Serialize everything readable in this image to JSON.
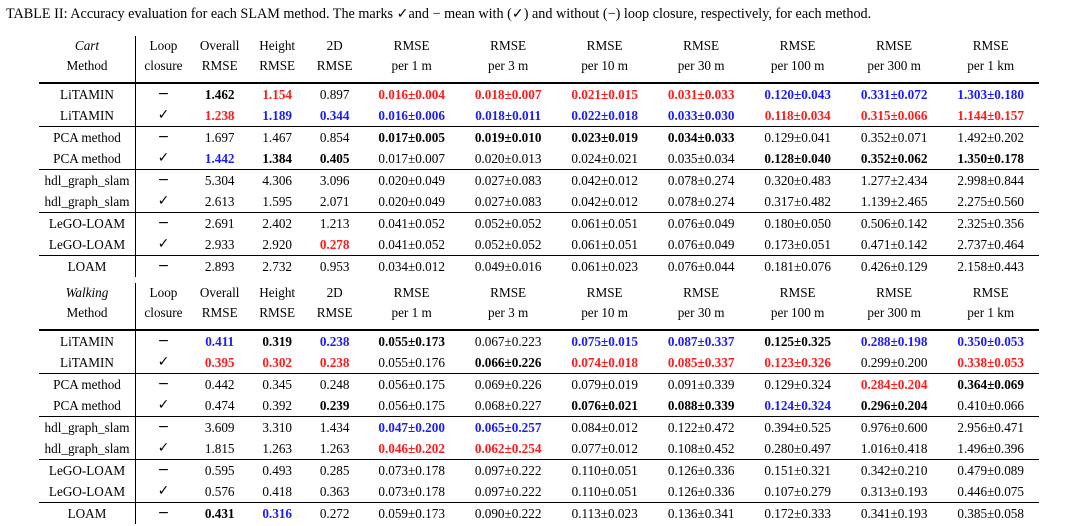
{
  "caption": "TABLE II: Accuracy evaluation for each SLAM method. The marks ✓and − mean with (✓) and without (−) loop closure, respectively, for each method.",
  "colors": {
    "red": "#ff1a1a",
    "blue": "#1a1aff"
  },
  "columns": [
    "",
    "Loop",
    "Overall",
    "Height",
    "2D",
    "RMSE",
    "RMSE",
    "RMSE",
    "RMSE",
    "RMSE",
    "RMSE",
    "RMSE"
  ],
  "columns2": [
    "Method",
    "closure",
    "RMSE",
    "RMSE",
    "RMSE",
    "per 1 m",
    "per 3 m",
    "per 10 m",
    "per 30 m",
    "per 100 m",
    "per 300 m",
    "per 1 km"
  ],
  "sections": [
    {
      "name": "Cart",
      "groups": [
        [
          {
            "cells": [
              "LiTAMIN",
              "−",
              "1.462",
              "1.154",
              "0.897",
              "0.016±0.004",
              "0.018±0.007",
              "0.021±0.015",
              "0.031±0.033",
              "0.120±0.043",
              "0.331±0.072",
              "1.303±0.180"
            ],
            "styles": [
              "",
              "",
              "b",
              "red",
              "",
              "red",
              "red",
              "red",
              "red",
              "blue",
              "blue",
              "blue"
            ]
          },
          {
            "cells": [
              "LiTAMIN",
              "✓",
              "1.238",
              "1.189",
              "0.344",
              "0.016±0.006",
              "0.018±0.011",
              "0.022±0.018",
              "0.033±0.030",
              "0.118±0.034",
              "0.315±0.066",
              "1.144±0.157"
            ],
            "styles": [
              "",
              "",
              "red",
              "blue",
              "blue",
              "blue",
              "blue",
              "blue",
              "blue",
              "red",
              "red",
              "red"
            ]
          }
        ],
        [
          {
            "cells": [
              "PCA method",
              "−",
              "1.697",
              "1.467",
              "0.854",
              "0.017±0.005",
              "0.019±0.010",
              "0.023±0.019",
              "0.034±0.033",
              "0.129±0.041",
              "0.352±0.071",
              "1.492±0.202"
            ],
            "styles": [
              "",
              "",
              "",
              "",
              "",
              "b",
              "b",
              "b",
              "b",
              "",
              "",
              ""
            ]
          },
          {
            "cells": [
              "PCA method",
              "✓",
              "1.442",
              "1.384",
              "0.405",
              "0.017±0.007",
              "0.020±0.013",
              "0.024±0.021",
              "0.035±0.034",
              "0.128±0.040",
              "0.352±0.062",
              "1.350±0.178"
            ],
            "styles": [
              "",
              "",
              "blue",
              "b",
              "b",
              "",
              "",
              "",
              "",
              "b",
              "b",
              "b"
            ]
          }
        ],
        [
          {
            "cells": [
              "hdl_graph_slam",
              "−",
              "5.304",
              "4.306",
              "3.096",
              "0.020±0.049",
              "0.027±0.083",
              "0.042±0.012",
              "0.078±0.274",
              "0.320±0.483",
              "1.277±2.434",
              "2.998±0.844"
            ],
            "styles": [
              "",
              "",
              "",
              "",
              "",
              "",
              "",
              "",
              "",
              "",
              "",
              ""
            ]
          },
          {
            "cells": [
              "hdl_graph_slam",
              "✓",
              "2.613",
              "1.595",
              "2.071",
              "0.020±0.049",
              "0.027±0.083",
              "0.042±0.012",
              "0.078±0.274",
              "0.317±0.482",
              "1.139±2.465",
              "2.275±0.560"
            ],
            "styles": [
              "",
              "",
              "",
              "",
              "",
              "",
              "",
              "",
              "",
              "",
              "",
              ""
            ]
          }
        ],
        [
          {
            "cells": [
              "LeGO-LOAM",
              "−",
              "2.691",
              "2.402",
              "1.213",
              "0.041±0.052",
              "0.052±0.052",
              "0.061±0.051",
              "0.076±0.049",
              "0.180±0.050",
              "0.506±0.142",
              "2.325±0.356"
            ],
            "styles": [
              "",
              "",
              "",
              "",
              "",
              "",
              "",
              "",
              "",
              "",
              "",
              ""
            ]
          },
          {
            "cells": [
              "LeGO-LOAM",
              "✓",
              "2.933",
              "2.920",
              "0.278",
              "0.041±0.052",
              "0.052±0.052",
              "0.061±0.051",
              "0.076±0.049",
              "0.173±0.051",
              "0.471±0.142",
              "2.737±0.464"
            ],
            "styles": [
              "",
              "",
              "",
              "",
              "red",
              "",
              "",
              "",
              "",
              "",
              "",
              ""
            ]
          }
        ],
        [
          {
            "cells": [
              "LOAM",
              "−",
              "2.893",
              "2.732",
              "0.953",
              "0.034±0.012",
              "0.049±0.016",
              "0.061±0.023",
              "0.076±0.044",
              "0.181±0.076",
              "0.426±0.129",
              "2.158±0.443"
            ],
            "styles": [
              "",
              "",
              "",
              "",
              "",
              "",
              "",
              "",
              "",
              "",
              "",
              ""
            ]
          }
        ]
      ]
    },
    {
      "name": "Walking",
      "groups": [
        [
          {
            "cells": [
              "LiTAMIN",
              "−",
              "0.411",
              "0.319",
              "0.238",
              "0.055±0.173",
              "0.067±0.223",
              "0.075±0.015",
              "0.087±0.337",
              "0.125±0.325",
              "0.288±0.198",
              "0.350±0.053"
            ],
            "styles": [
              "",
              "",
              "blue",
              "b",
              "blue",
              "b",
              "",
              "blue",
              "blue",
              "b",
              "blue",
              "blue"
            ]
          },
          {
            "cells": [
              "LiTAMIN",
              "✓",
              "0.395",
              "0.302",
              "0.238",
              "0.055±0.176",
              "0.066±0.226",
              "0.074±0.018",
              "0.085±0.337",
              "0.123±0.326",
              "0.299±0.200",
              "0.338±0.053"
            ],
            "styles": [
              "",
              "",
              "red",
              "red",
              "red",
              "",
              "b",
              "red",
              "red",
              "red",
              "",
              "red"
            ]
          }
        ],
        [
          {
            "cells": [
              "PCA method",
              "−",
              "0.442",
              "0.345",
              "0.248",
              "0.056±0.175",
              "0.069±0.226",
              "0.079±0.019",
              "0.091±0.339",
              "0.129±0.324",
              "0.284±0.204",
              "0.364±0.069"
            ],
            "styles": [
              "",
              "",
              "",
              "",
              "",
              "",
              "",
              "",
              "",
              "",
              "red",
              "b"
            ]
          },
          {
            "cells": [
              "PCA method",
              "✓",
              "0.474",
              "0.392",
              "0.239",
              "0.056±0.175",
              "0.068±0.227",
              "0.076±0.021",
              "0.088±0.339",
              "0.124±0.324",
              "0.296±0.204",
              "0.410±0.066"
            ],
            "styles": [
              "",
              "",
              "",
              "",
              "b",
              "",
              "",
              "b",
              "b",
              "blue",
              "b",
              ""
            ]
          }
        ],
        [
          {
            "cells": [
              "hdl_graph_slam",
              "−",
              "3.609",
              "3.310",
              "1.434",
              "0.047±0.200",
              "0.065±0.257",
              "0.084±0.012",
              "0.122±0.472",
              "0.394±0.525",
              "0.976±0.600",
              "2.956±0.471"
            ],
            "styles": [
              "",
              "",
              "",
              "",
              "",
              "blue",
              "blue",
              "",
              "",
              "",
              "",
              ""
            ]
          },
          {
            "cells": [
              "hdl_graph_slam",
              "✓",
              "1.815",
              "1.263",
              "1.263",
              "0.046±0.202",
              "0.062±0.254",
              "0.077±0.012",
              "0.108±0.452",
              "0.280±0.497",
              "1.016±0.418",
              "1.496±0.396"
            ],
            "styles": [
              "",
              "",
              "",
              "",
              "",
              "red",
              "red",
              "",
              "",
              "",
              "",
              ""
            ]
          }
        ],
        [
          {
            "cells": [
              "LeGO-LOAM",
              "−",
              "0.595",
              "0.493",
              "0.285",
              "0.073±0.178",
              "0.097±0.222",
              "0.110±0.051",
              "0.126±0.336",
              "0.151±0.321",
              "0.342±0.210",
              "0.479±0.089"
            ],
            "styles": [
              "",
              "",
              "",
              "",
              "",
              "",
              "",
              "",
              "",
              "",
              "",
              ""
            ]
          },
          {
            "cells": [
              "LeGO-LOAM",
              "✓",
              "0.576",
              "0.418",
              "0.363",
              "0.073±0.178",
              "0.097±0.222",
              "0.110±0.051",
              "0.126±0.336",
              "0.107±0.279",
              "0.313±0.193",
              "0.446±0.075"
            ],
            "styles": [
              "",
              "",
              "",
              "",
              "",
              "",
              "",
              "",
              "",
              "",
              "",
              ""
            ]
          }
        ],
        [
          {
            "cells": [
              "LOAM",
              "−",
              "0.431",
              "0.316",
              "0.272",
              "0.059±0.173",
              "0.090±0.222",
              "0.113±0.023",
              "0.136±0.341",
              "0.172±0.333",
              "0.341±0.193",
              "0.385±0.058"
            ],
            "styles": [
              "",
              "",
              "b",
              "blue",
              "",
              "",
              "",
              "",
              "",
              "",
              "",
              ""
            ]
          }
        ]
      ]
    }
  ]
}
